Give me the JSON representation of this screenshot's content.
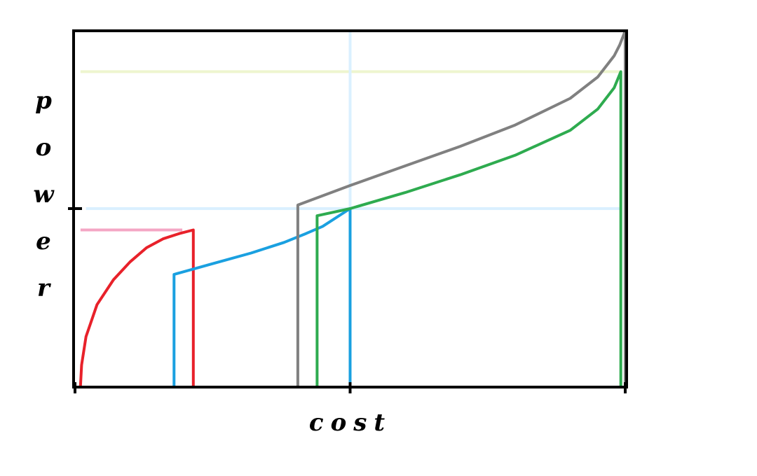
{
  "chart_data": {
    "type": "line",
    "title": "",
    "xlabel": "cost",
    "ylabel": "power",
    "x_ticks": [
      0,
      0.5,
      1
    ],
    "y_ticks": [
      0.5
    ],
    "xlim": [
      0,
      1
    ],
    "ylim": [
      0,
      1
    ],
    "grid": false,
    "series": [
      {
        "color": "#e8212a",
        "shape": "rising-concave-then-drop",
        "x": [
          0.01,
          0.012,
          0.02,
          0.04,
          0.07,
          0.1,
          0.13,
          0.16,
          0.19,
          0.215,
          0.215,
          0.215
        ],
        "y": [
          0.0,
          0.06,
          0.14,
          0.23,
          0.3,
          0.35,
          0.39,
          0.415,
          0.43,
          0.44,
          0.44,
          0.0
        ]
      },
      {
        "color": "#1aa0e0",
        "shape": "step-up-rising-then-drop",
        "x": [
          0.18,
          0.18,
          0.25,
          0.32,
          0.38,
          0.42,
          0.45,
          0.5,
          0.5
        ],
        "y": [
          0.0,
          0.315,
          0.345,
          0.375,
          0.405,
          0.43,
          0.45,
          0.5,
          0.0
        ]
      },
      {
        "color": "#808080",
        "shape": "step-up-rising-then-vertical",
        "x": [
          0.405,
          0.405,
          0.5,
          0.6,
          0.7,
          0.8,
          0.9,
          0.95,
          0.98,
          0.99,
          1.0,
          1.0
        ],
        "y": [
          0.0,
          0.51,
          0.565,
          0.62,
          0.675,
          0.735,
          0.81,
          0.87,
          0.93,
          0.96,
          1.0,
          0.0
        ]
      },
      {
        "color": "#2eab4f",
        "shape": "step-up-rising-then-drop",
        "x": [
          0.44,
          0.44,
          0.5,
          0.6,
          0.7,
          0.8,
          0.9,
          0.95,
          0.98,
          0.992,
          0.992
        ],
        "y": [
          0.0,
          0.48,
          0.5,
          0.545,
          0.595,
          0.65,
          0.72,
          0.78,
          0.84,
          0.885,
          0.0
        ]
      }
    ],
    "reference_lines": [
      {
        "orientation": "horizontal",
        "color": "#f4a6c4",
        "y": 0.44,
        "x_range": [
          0.01,
          0.195
        ]
      },
      {
        "orientation": "horizontal",
        "color": "#daf0ff",
        "y": 0.5,
        "x_range": [
          0.02,
          0.99
        ]
      },
      {
        "orientation": "horizontal",
        "color": "#eef5cf",
        "y": 0.885,
        "x_range": [
          0.01,
          0.99
        ]
      },
      {
        "orientation": "vertical",
        "color": "#daf0ff",
        "x": 0.5,
        "y_range": [
          0.5,
          1.0
        ]
      }
    ]
  }
}
